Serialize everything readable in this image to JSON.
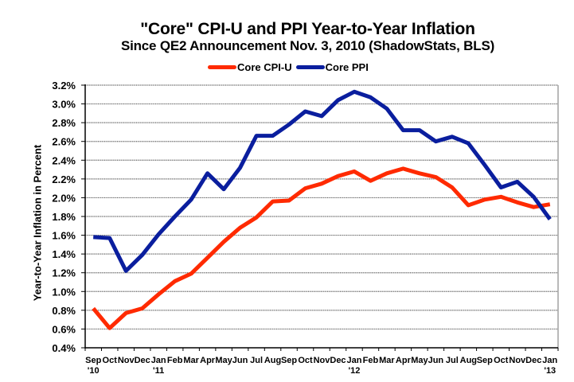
{
  "chart_data": {
    "type": "line",
    "title": "\"Core\" CPI-U and PPI Year-to-Year Inflation",
    "subtitle": "Since QE2 Announcement Nov. 3, 2010 (ShadowStats, BLS)",
    "xlabel": "",
    "ylabel": "Year-to-Year Inflation in Percent",
    "ylim": [
      0.4,
      3.2
    ],
    "y_ticks": [
      0.4,
      0.6,
      0.8,
      1.0,
      1.2,
      1.4,
      1.6,
      1.8,
      2.0,
      2.2,
      2.4,
      2.6,
      2.8,
      3.0,
      3.2
    ],
    "y_tick_labels": [
      "0.4%",
      "0.6%",
      "0.8%",
      "1.0%",
      "1.2%",
      "1.4%",
      "1.6%",
      "1.8%",
      "2.0%",
      "2.2%",
      "2.4%",
      "2.6%",
      "2.8%",
      "3.0%",
      "3.2%"
    ],
    "grid": true,
    "legend_position": "top-center",
    "categories": [
      "Sep",
      "Oct",
      "Nov",
      "Dec",
      "Jan",
      "Feb",
      "Mar",
      "Apr",
      "May",
      "Jun",
      "Jul",
      "Aug",
      "Sep",
      "Oct",
      "Nov",
      "Dec",
      "Jan",
      "Feb",
      "Mar",
      "Apr",
      "May",
      "Jun",
      "Jul",
      "Aug",
      "Sep",
      "Oct",
      "Nov",
      "Dec",
      "Jan"
    ],
    "category_years": {
      "0": "'10",
      "4": "'11",
      "16": "'12",
      "28": "'13"
    },
    "series": [
      {
        "name": "Core CPI-U",
        "color": "#FF2A00",
        "values": [
          0.82,
          0.61,
          0.77,
          0.82,
          0.97,
          1.11,
          1.19,
          1.36,
          1.53,
          1.68,
          1.79,
          1.96,
          1.97,
          2.1,
          2.15,
          2.23,
          2.28,
          2.18,
          2.26,
          2.31,
          2.26,
          2.22,
          2.11,
          1.92,
          1.98,
          2.01,
          1.95,
          1.9,
          1.93
        ]
      },
      {
        "name": "Core PPI",
        "color": "#0A1E9E",
        "values": [
          1.58,
          1.57,
          1.22,
          1.39,
          1.61,
          1.8,
          1.98,
          2.26,
          2.09,
          2.32,
          2.66,
          2.66,
          2.78,
          2.92,
          2.87,
          3.04,
          3.13,
          3.07,
          2.95,
          2.72,
          2.72,
          2.6,
          2.65,
          2.58,
          2.35,
          2.11,
          2.17,
          2.01,
          1.77
        ]
      }
    ]
  }
}
